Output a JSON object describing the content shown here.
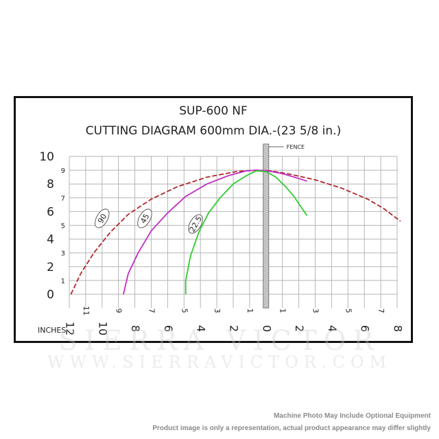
{
  "chart_data": {
    "type": "line",
    "title": "SUP-600 NF",
    "subtitle": "CUTTING DIAGRAM 600mm DIA.-(23 5/8 in.)",
    "x_unit_label": "INCHES",
    "fence_label": "FENCE",
    "xlim": [
      -12,
      8
    ],
    "ylim": [
      0,
      10
    ],
    "y_ticks_major": [
      0,
      2,
      4,
      6,
      8,
      10
    ],
    "y_ticks_minor": [
      1,
      3,
      5,
      7,
      9
    ],
    "x_ticks_major_left": [
      12,
      10,
      8,
      6,
      4,
      2,
      0
    ],
    "x_ticks_minor_left": [
      11,
      9,
      7,
      5,
      3,
      1
    ],
    "x_ticks_major_right": [
      2,
      4,
      6,
      8
    ],
    "x_ticks_minor_right": [
      1,
      3,
      5,
      7
    ],
    "series": [
      {
        "name": "90",
        "color": "#b0252a",
        "style": "dashed",
        "x": [
          -11.9,
          -11.3,
          -10.5,
          -9.5,
          -8.4,
          -7,
          -5.4,
          -3.6,
          -1.8,
          -0.7,
          0.3,
          1.5,
          3,
          4.6,
          6.2,
          7.2,
          8.2
        ],
        "y": [
          0,
          1.5,
          3,
          4.5,
          5.8,
          6.9,
          7.8,
          8.5,
          8.9,
          9,
          8.95,
          8.7,
          8.3,
          7.7,
          6.9,
          6.2,
          5.3
        ]
      },
      {
        "name": "45",
        "color": "#c02ec0",
        "style": "solid",
        "x": [
          -8.7,
          -8.4,
          -7.8,
          -7,
          -6,
          -4.9,
          -3.6,
          -2.3,
          -1.2,
          -0.6,
          0,
          1,
          2,
          2.5
        ],
        "y": [
          0,
          1.5,
          3,
          4.6,
          5.9,
          7.1,
          8,
          8.6,
          8.95,
          9,
          8.97,
          8.75,
          8.4,
          8.2
        ]
      },
      {
        "name": "22.5",
        "color": "#2ecc2e",
        "style": "solid",
        "x": [
          -4.9,
          -4.9,
          -4.6,
          -4.1,
          -3.5,
          -2.8,
          -2,
          -1.2,
          -0.6,
          0,
          0.6,
          1.2,
          1.7,
          2.1,
          2.5
        ],
        "y": [
          0,
          1.0,
          2.8,
          4.5,
          5.9,
          7,
          8,
          8.6,
          8.95,
          8.9,
          8.5,
          7.8,
          7.1,
          6.4,
          5.7
        ]
      }
    ],
    "fence_x": 0,
    "grid": true,
    "legend": "inline-labels"
  },
  "watermark": {
    "line1": "SIERRA VICTOR",
    "line2": "WWW.SIERRAVICTOR.COM"
  },
  "footnotes": [
    "Machine Photo May Include Optional Equipment",
    "Product image is only a representation, actual product appearance may differ slightly"
  ]
}
